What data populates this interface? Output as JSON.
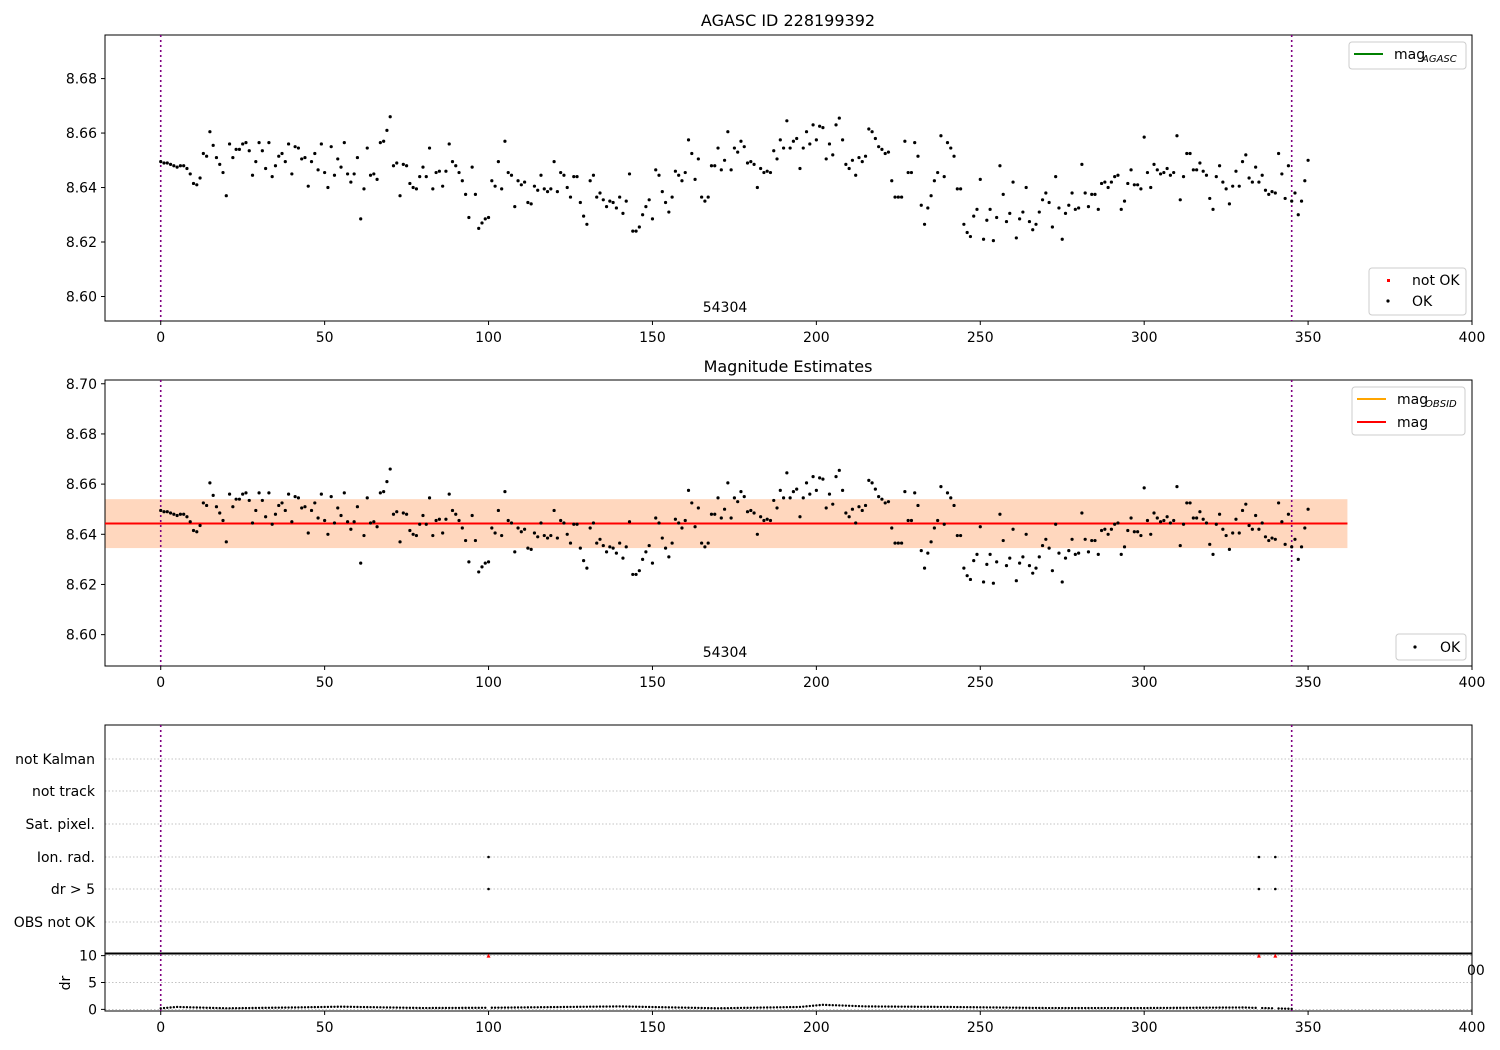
{
  "panel_top": {
    "title": "AGASC ID 228199392",
    "obsid_label": "54304",
    "legend_lines": [
      {
        "label": "mag",
        "sub": "AGASC",
        "color": "#008000"
      }
    ],
    "legend_points": [
      {
        "label": "not OK",
        "color": "#ff0000"
      },
      {
        "label": "OK",
        "color": "#000000"
      }
    ]
  },
  "panel_mid": {
    "title": "Magnitude Estimates",
    "obsid_label": "54304",
    "legend_lines": [
      {
        "label": "mag",
        "sub": "OBSID",
        "color": "#ffa500"
      },
      {
        "label": "mag",
        "sub": "",
        "color": "#ff0000"
      }
    ],
    "legend_points": [
      {
        "label": "OK",
        "color": "#000000"
      }
    ]
  },
  "panel_flags": {
    "categories": [
      "not Kalman",
      "not track",
      "Sat. pixel.",
      "Ion. rad.",
      "dr > 5",
      "OBS not OK"
    ]
  },
  "panel_dr": {
    "ylabel": "dr",
    "clipped_tick": "00"
  },
  "chart_data": [
    {
      "type": "scatter",
      "title": "AGASC ID 228199392",
      "xlabel": "",
      "ylabel": "",
      "xlim": [
        -17,
        400
      ],
      "ylim": [
        8.591,
        8.696
      ],
      "xticks": [
        0,
        50,
        100,
        150,
        200,
        250,
        300,
        350,
        400
      ],
      "yticks": [
        8.6,
        8.62,
        8.64,
        8.66,
        8.68
      ],
      "grid": false,
      "legend": "top-right / bottom-right",
      "vlines": [
        {
          "x": 0,
          "style": "dotted",
          "color": "#800080"
        },
        {
          "x": 345,
          "style": "dotted",
          "color": "#800080"
        }
      ],
      "annotations": [
        {
          "text": "54304",
          "x": 172,
          "y": 8.5945
        }
      ],
      "series": [
        {
          "name": "OK",
          "color": "#000000",
          "note": "345 per-sample magnitude readings, index 0-345",
          "y": [
            8.6495,
            8.649,
            8.649,
            8.6485,
            8.648,
            8.6475,
            8.648,
            8.648,
            8.647,
            8.645,
            8.6415,
            8.641,
            8.6435,
            8.6525,
            8.6515,
            8.6605,
            8.6555,
            8.651,
            8.6485,
            8.6455,
            8.637,
            8.656,
            8.651,
            8.654,
            8.654,
            8.656,
            8.6565,
            8.6535,
            8.6445,
            8.6495,
            8.6565,
            8.6535,
            8.647,
            8.6565,
            8.644,
            8.648,
            8.6515,
            8.6525,
            8.6495,
            8.656,
            8.645,
            8.655,
            8.6545,
            8.6505,
            8.651,
            8.6405,
            8.6495,
            8.6525,
            8.6465,
            8.656,
            8.6455,
            8.64,
            8.655,
            8.6445,
            8.6505,
            8.6475,
            8.6565,
            8.645,
            8.642,
            8.645,
            8.651,
            8.6285,
            8.6395,
            8.6545,
            8.6445,
            8.645,
            8.643,
            8.6565,
            8.657,
            8.661,
            8.666,
            8.648,
            8.649,
            8.637,
            8.6485,
            8.648,
            8.6415,
            8.64,
            8.6395,
            8.644,
            8.6475,
            8.644,
            8.6545,
            8.6395,
            8.6455,
            8.646,
            8.6405,
            8.646,
            8.656,
            8.6495,
            8.648,
            8.6455,
            8.6425,
            8.6375,
            8.629,
            8.6475,
            8.6375,
            8.625,
            8.627,
            8.6285,
            8.629,
            8.6425,
            8.6405,
            8.6495,
            8.6395,
            8.657,
            8.6455,
            8.6445,
            8.633,
            8.6425,
            8.641,
            8.642,
            8.6345,
            8.634,
            8.6405,
            8.639,
            8.6445,
            8.6395,
            8.6385,
            8.6395,
            8.6495,
            8.6385,
            8.6455,
            8.6445,
            8.64,
            8.6365,
            8.644,
            8.644,
            8.6345,
            8.6295,
            8.6265,
            8.6425,
            8.6445,
            8.6365,
            8.638,
            8.6355,
            8.633,
            8.635,
            8.6345,
            8.6325,
            8.6365,
            8.6305,
            8.635,
            8.645,
            8.624,
            8.624,
            8.6255,
            8.63,
            8.633,
            8.6355,
            8.6285,
            8.6465,
            8.6445,
            8.6385,
            8.6345,
            8.631,
            8.6365,
            8.646,
            8.6445,
            8.6425,
            8.6455,
            8.6575,
            8.6525,
            8.643,
            8.6505,
            8.6365,
            8.635,
            8.6365,
            8.648,
            8.648,
            8.6545,
            8.6465,
            8.65,
            8.6605,
            8.6465,
            8.6545,
            8.653,
            8.657,
            8.655,
            8.649,
            8.6495,
            8.6485,
            8.64,
            8.647,
            8.6455,
            8.646,
            8.6455,
            8.6535,
            8.6505,
            8.6575,
            8.6545,
            8.6645,
            8.6545,
            8.657,
            8.658,
            8.647,
            8.6545,
            8.6605,
            8.656,
            8.663,
            8.6575,
            8.6625,
            8.662,
            8.6505,
            8.656,
            8.652,
            8.663,
            8.6655,
            8.6575,
            8.6485,
            8.647,
            8.65,
            8.6445,
            8.651,
            8.6495,
            8.6515,
            8.6615,
            8.6605,
            8.658,
            8.655,
            8.654,
            8.6525,
            8.653,
            8.6425,
            8.6365,
            8.6365,
            8.6365,
            8.657,
            8.6455,
            8.6455,
            8.6565,
            8.6515,
            8.6335,
            8.6265,
            8.6325,
            8.637,
            8.6425,
            8.6455,
            8.659,
            8.644,
            8.6565,
            8.6545,
            8.6515,
            8.6395,
            8.6395,
            8.6265,
            8.6235,
            8.622,
            8.6295,
            8.632,
            8.643,
            8.621,
            8.628,
            8.632,
            8.6205,
            8.629,
            8.648,
            8.6375,
            8.6275,
            8.6305,
            8.642,
            8.6215,
            8.6285,
            8.631,
            8.64,
            8.6275,
            8.6245,
            8.6265,
            8.631,
            8.6355,
            8.638,
            8.6345,
            8.6255,
            8.644,
            8.6325,
            8.621,
            8.6305,
            8.6335,
            8.638,
            8.632,
            8.6325,
            8.6485,
            8.638,
            8.633,
            8.6375,
            8.6375,
            8.632,
            8.6415,
            8.642,
            8.64,
            8.642,
            8.644,
            8.6445,
            8.632,
            8.635,
            8.6415,
            8.6465,
            8.641,
            8.641,
            8.6395,
            8.6585,
            8.6455,
            8.64,
            8.6485,
            8.6465,
            8.645,
            8.6455,
            8.647,
            8.6445,
            8.6455,
            8.659,
            8.6355,
            8.644,
            8.6525,
            8.6525,
            8.6465,
            8.6465,
            8.649,
            8.646,
            8.6445,
            8.636,
            8.632,
            8.644,
            8.648,
            8.642,
            8.6395,
            8.634,
            8.6405,
            8.646,
            8.6405,
            8.6495,
            8.652,
            8.6435,
            8.642,
            8.6475,
            8.642,
            8.6445,
            8.639,
            8.6375,
            8.6385,
            8.638,
            8.6525,
            8.645,
            8.636,
            8.648,
            8.635,
            8.638,
            8.63,
            8.635,
            8.6425,
            8.65
          ]
        },
        {
          "name": "not OK",
          "color": "#ff0000",
          "y": []
        },
        {
          "name": "mag_AGASC",
          "color": "#008000",
          "type": "line",
          "y": []
        }
      ]
    },
    {
      "type": "scatter",
      "title": "Magnitude Estimates",
      "xlabel": "",
      "ylabel": "",
      "xlim": [
        -17,
        400
      ],
      "ylim": [
        8.5875,
        8.7015
      ],
      "xticks": [
        0,
        50,
        100,
        150,
        200,
        250,
        300,
        350,
        400
      ],
      "yticks": [
        8.6,
        8.62,
        8.64,
        8.66,
        8.68,
        8.7
      ],
      "grid": false,
      "legend": "top-right / bottom-right",
      "vlines": [
        {
          "x": 0,
          "style": "dotted",
          "color": "#800080"
        },
        {
          "x": 345,
          "style": "dotted",
          "color": "#800080"
        }
      ],
      "annotations": [
        {
          "text": "54304",
          "x": 172,
          "y": 8.591
        }
      ],
      "series": [
        {
          "name": "OK",
          "color": "#000000",
          "note": "same readings as top panel"
        },
        {
          "name": "mag_OBSID",
          "color": "#ffa500",
          "type": "line",
          "x": [
            -17,
            362
          ],
          "y": [
            8.6443,
            8.6443
          ],
          "band": {
            "lower": 8.6345,
            "upper": 8.654,
            "color": "#ffa500"
          }
        },
        {
          "name": "mag",
          "color": "#ff0000",
          "type": "line",
          "x": [
            -17,
            362
          ],
          "y": [
            8.6443,
            8.6443
          ],
          "band": {
            "lower": 8.6345,
            "upper": 8.654,
            "color": "#ff0000"
          }
        }
      ]
    },
    {
      "type": "scatter",
      "title": "",
      "xlabel": "",
      "ylabel": "",
      "categories": [
        "not Kalman",
        "not track",
        "Sat. pixel.",
        "Ion. rad.",
        "dr > 5",
        "OBS not OK"
      ],
      "xlim": [
        -17,
        400
      ],
      "grid": true,
      "vlines": [
        {
          "x": 0,
          "style": "dotted",
          "color": "#800080"
        },
        {
          "x": 345,
          "style": "dotted",
          "color": "#800080"
        }
      ],
      "points": [
        {
          "x": 100,
          "category": "Ion. rad."
        },
        {
          "x": 335,
          "category": "Ion. rad."
        },
        {
          "x": 340,
          "category": "Ion. rad."
        },
        {
          "x": 100,
          "category": "dr > 5"
        },
        {
          "x": 335,
          "category": "dr > 5"
        },
        {
          "x": 340,
          "category": "dr > 5"
        }
      ]
    },
    {
      "type": "scatter",
      "title": "",
      "xlabel": "",
      "ylabel": "dr",
      "xlim": [
        -17,
        400
      ],
      "ylim": [
        -0.3,
        10.3
      ],
      "xticks": [
        0,
        50,
        100,
        150,
        200,
        250,
        300,
        350,
        400
      ],
      "yticks": [
        0,
        5,
        10
      ],
      "grid": true,
      "vlines": [
        {
          "x": 0,
          "style": "dotted",
          "color": "#800080"
        },
        {
          "x": 345,
          "style": "dotted",
          "color": "#800080"
        }
      ],
      "series": [
        {
          "name": "dr",
          "color": "#000000",
          "note": "values near 0.1-0.8 for all samples",
          "y_profile": [
            [
              0,
              0.2
            ],
            [
              5,
              0.45
            ],
            [
              20,
              0.2
            ],
            [
              40,
              0.35
            ],
            [
              55,
              0.5
            ],
            [
              80,
              0.25
            ],
            [
              100,
              0.3
            ],
            [
              140,
              0.55
            ],
            [
              170,
              0.2
            ],
            [
              195,
              0.45
            ],
            [
              202,
              0.85
            ],
            [
              215,
              0.55
            ],
            [
              240,
              0.45
            ],
            [
              270,
              0.25
            ],
            [
              300,
              0.25
            ],
            [
              330,
              0.35
            ],
            [
              345,
              0.1
            ]
          ]
        },
        {
          "name": "dr clipped",
          "color": "#ff0000",
          "marker": "triangle",
          "x": [
            100,
            335,
            340
          ],
          "y": [
            10,
            10,
            10
          ]
        }
      ]
    }
  ]
}
